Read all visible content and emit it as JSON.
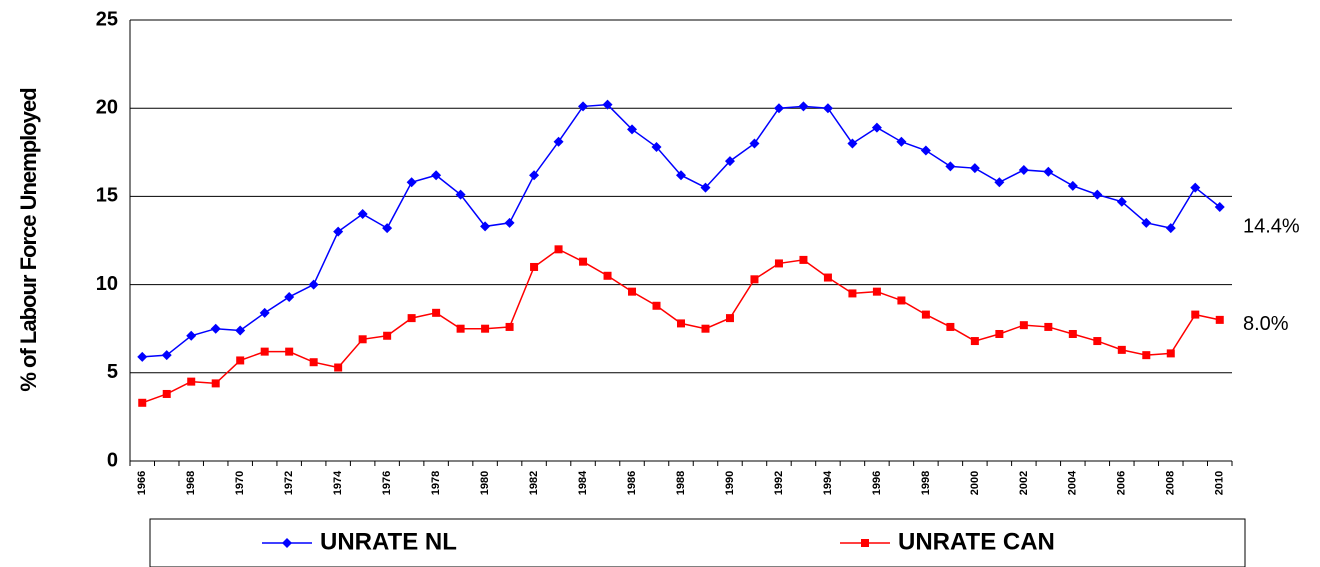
{
  "chart_data": {
    "type": "line",
    "y_label": "% of Labour Force Unemployed",
    "categories": [
      "1966",
      null,
      "1968",
      null,
      "1970",
      null,
      "1972",
      null,
      "1974",
      null,
      "1976",
      null,
      "1978",
      null,
      "1980",
      null,
      "1982",
      null,
      "1984",
      null,
      "1986",
      null,
      "1988",
      null,
      "1990",
      null,
      "1992",
      null,
      "1994",
      null,
      "1996",
      null,
      "1998",
      null,
      "2000",
      null,
      "2002",
      null,
      "2004",
      null,
      "2006",
      null,
      "2008",
      null,
      "2010"
    ],
    "series": [
      {
        "name": "UNRATE NL",
        "color": "#0000ff",
        "marker": "diamond",
        "values": [
          5.9,
          6.0,
          7.1,
          7.5,
          7.4,
          8.4,
          9.3,
          10.0,
          13.0,
          14.0,
          13.2,
          15.8,
          16.2,
          15.1,
          13.3,
          13.5,
          16.2,
          18.1,
          20.1,
          20.2,
          18.8,
          17.8,
          16.2,
          15.5,
          17.0,
          18.0,
          20.0,
          20.1,
          20.0,
          18.0,
          18.9,
          18.1,
          17.6,
          16.7,
          16.6,
          15.8,
          16.5,
          16.4,
          15.6,
          15.1,
          14.7,
          13.5,
          13.2,
          15.5,
          14.4
        ]
      },
      {
        "name": "UNRATE CAN",
        "color": "#ff0000",
        "marker": "square",
        "values": [
          3.3,
          3.8,
          4.5,
          4.4,
          5.7,
          6.2,
          6.2,
          5.6,
          5.3,
          6.9,
          7.1,
          8.1,
          8.4,
          7.5,
          7.5,
          7.6,
          11.0,
          12.0,
          11.3,
          10.5,
          9.6,
          8.8,
          7.8,
          7.5,
          8.1,
          10.3,
          11.2,
          11.4,
          10.4,
          9.5,
          9.6,
          9.1,
          8.3,
          7.6,
          6.8,
          7.2,
          7.7,
          7.6,
          7.2,
          6.8,
          6.3,
          6.0,
          6.1,
          8.3,
          8.0
        ]
      }
    ],
    "annotations": [
      "14.4%",
      "8.0%"
    ],
    "ylim": [
      0,
      25
    ],
    "yticks": [
      0,
      5,
      10,
      15,
      20,
      25
    ],
    "grid": true,
    "legend": "bottom"
  }
}
